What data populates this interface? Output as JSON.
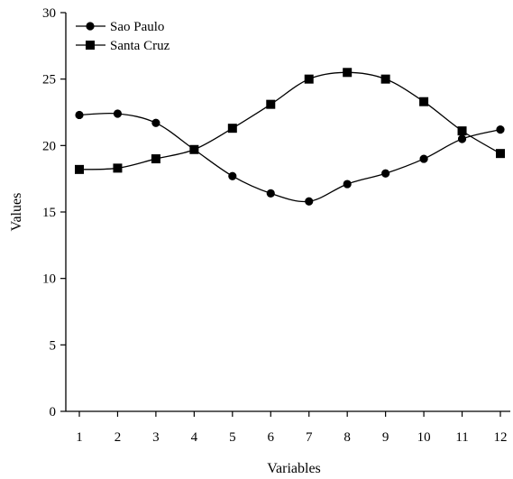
{
  "chart_data": {
    "type": "line",
    "title": "",
    "xlabel": "Variables",
    "ylabel": "Values",
    "x": [
      1,
      2,
      3,
      4,
      5,
      6,
      7,
      8,
      9,
      10,
      11,
      12
    ],
    "ylim": [
      0,
      30
    ],
    "yticks": [
      0,
      5,
      10,
      15,
      20,
      25,
      30
    ],
    "grid": false,
    "legend_position": "top-left",
    "series": [
      {
        "name": "Sao Paulo",
        "marker": "circle",
        "values": [
          22.3,
          22.4,
          21.7,
          19.7,
          17.7,
          16.4,
          15.8,
          17.1,
          17.9,
          19.0,
          20.5,
          21.2
        ]
      },
      {
        "name": "Santa Cruz",
        "marker": "square",
        "values": [
          18.2,
          18.3,
          19.0,
          19.7,
          21.3,
          23.1,
          25.0,
          25.5,
          25.0,
          23.3,
          21.1,
          19.4
        ]
      }
    ]
  }
}
